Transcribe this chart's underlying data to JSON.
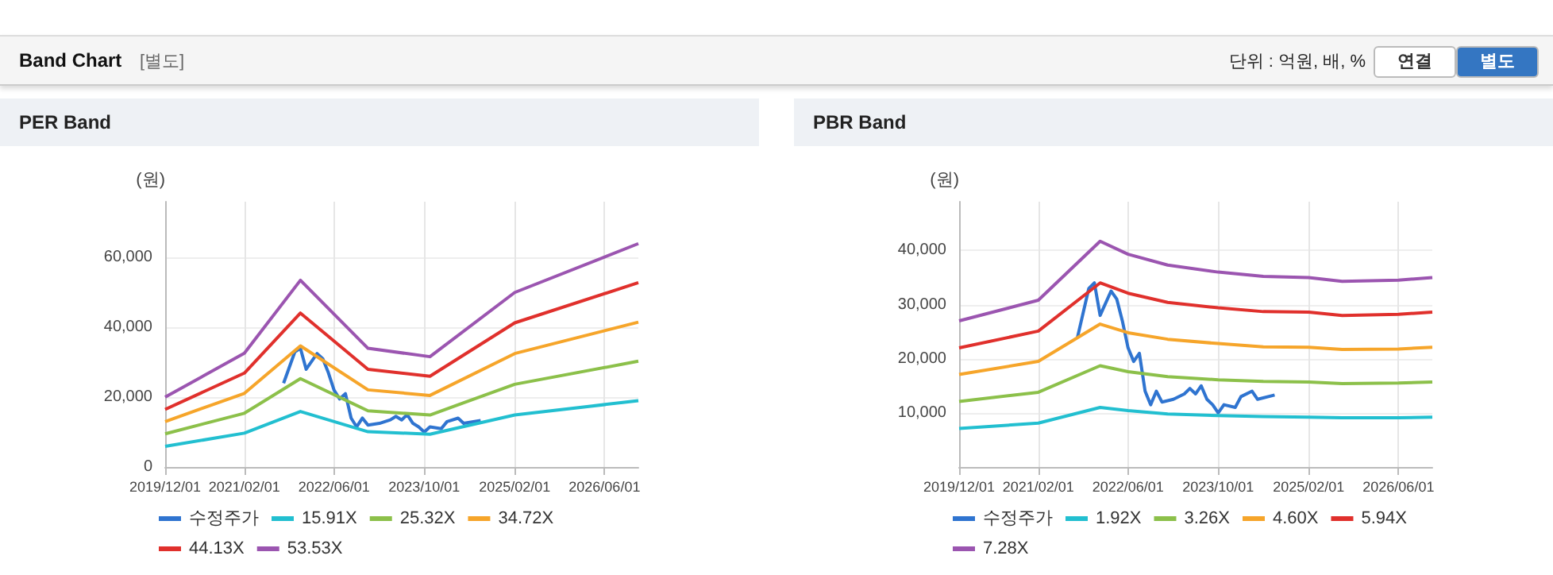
{
  "chart_data": [
    {
      "type": "line",
      "title": "PER Band",
      "ylabel": "(원)",
      "annotations": [
        "Band Chart",
        "[별도]",
        "단위 : 억원, 배, %",
        "연결",
        "별도"
      ],
      "xlim": [
        "2019-12-01",
        "2026-12-01"
      ],
      "xticks": [
        {
          "value": "2019-12-01",
          "label": "2019/12/01"
        },
        {
          "value": "2021-02-01",
          "label": "2021/02/01"
        },
        {
          "value": "2022-06-01",
          "label": "2022/06/01"
        },
        {
          "value": "2023-10-01",
          "label": "2023/10/01"
        },
        {
          "value": "2025-02-01",
          "label": "2025/02/01"
        },
        {
          "value": "2026-06-01",
          "label": "2026/06/01"
        }
      ],
      "ylim": [
        0,
        76000
      ],
      "yticks": [
        0,
        {
          "value": 20000,
          "label": "20,000"
        },
        {
          "value": 40000,
          "label": "40,000"
        },
        {
          "value": 60000,
          "label": "60,000"
        }
      ],
      "grid": true,
      "legend": "bottom",
      "marker": "none",
      "line_style": "solid",
      "series": [
        {
          "name": "수정주가",
          "color": "#2f74d0",
          "x": [
            "2021-09",
            "2021-11",
            "2021-12",
            "2022-01",
            "2022-03",
            "2022-04",
            "2022-05",
            "2022-06",
            "2022-07",
            "2022-08",
            "2022-09",
            "2022-10",
            "2022-11",
            "2022-12",
            "2023-02",
            "2023-04",
            "2023-05",
            "2023-06",
            "2023-07",
            "2023-08",
            "2023-09",
            "2023-10",
            "2023-11",
            "2024-01",
            "2024-02",
            "2024-04",
            "2024-05",
            "2024-08"
          ],
          "values": [
            24000,
            33000,
            34000,
            28000,
            32500,
            31000,
            27000,
            22000,
            19500,
            21000,
            14000,
            11500,
            14000,
            12000,
            12500,
            13500,
            14500,
            13500,
            15000,
            12500,
            11500,
            10000,
            11500,
            11000,
            13000,
            14000,
            12500,
            13300
          ]
        },
        {
          "name": "15.91X",
          "color": "#22bfd0",
          "x": [
            "2019-12",
            "2021-02",
            "2021-12",
            "2022-12",
            "2023-11",
            "2025-02",
            "2026-12"
          ],
          "values": [
            5900,
            9700,
            15900,
            10100,
            9400,
            14900,
            19000
          ]
        },
        {
          "name": "25.32X",
          "color": "#8cc04a",
          "x": [
            "2019-12",
            "2021-02",
            "2021-12",
            "2022-12",
            "2023-11",
            "2025-02",
            "2026-12"
          ],
          "values": [
            9500,
            15400,
            25300,
            16100,
            14900,
            23700,
            30300
          ]
        },
        {
          "name": "34.72X",
          "color": "#f6a52a",
          "x": [
            "2019-12",
            "2021-02",
            "2021-12",
            "2022-12",
            "2023-11",
            "2025-02",
            "2026-12"
          ],
          "values": [
            13000,
            21100,
            34700,
            22100,
            20500,
            32500,
            41500
          ]
        },
        {
          "name": "44.13X",
          "color": "#e0302c",
          "x": [
            "2019-12",
            "2021-02",
            "2021-12",
            "2022-12",
            "2023-11",
            "2025-02",
            "2026-12"
          ],
          "values": [
            16500,
            26900,
            44100,
            28000,
            26000,
            41300,
            52800
          ]
        },
        {
          "name": "53.53X",
          "color": "#9b55b0",
          "x": [
            "2019-12",
            "2021-02",
            "2021-12",
            "2022-12",
            "2023-11",
            "2025-02",
            "2026-12"
          ],
          "values": [
            20000,
            32600,
            53500,
            34000,
            31600,
            50000,
            64000
          ]
        }
      ]
    },
    {
      "type": "line",
      "title": "PBR Band",
      "ylabel": "(원)",
      "xlim": [
        "2019-12-01",
        "2026-12-01"
      ],
      "xticks": [
        {
          "value": "2019-12-01",
          "label": "2019/12/01"
        },
        {
          "value": "2021-02-01",
          "label": "2021/02/01"
        },
        {
          "value": "2022-06-01",
          "label": "2022/06/01"
        },
        {
          "value": "2023-10-01",
          "label": "2023/10/01"
        },
        {
          "value": "2025-02-01",
          "label": "2025/02/01"
        },
        {
          "value": "2026-06-01",
          "label": "2026/06/01"
        }
      ],
      "ylim": [
        0,
        49000
      ],
      "yticks": [
        {
          "value": 10000,
          "label": "10,000"
        },
        {
          "value": 20000,
          "label": "20,000"
        },
        {
          "value": 30000,
          "label": "30,000"
        },
        {
          "value": 40000,
          "label": "40,000"
        }
      ],
      "grid": true,
      "legend": "bottom",
      "marker": "none",
      "line_style": "solid",
      "series": [
        {
          "name": "수정주가",
          "color": "#2f74d0",
          "x": [
            "2021-09",
            "2021-11",
            "2021-12",
            "2022-01",
            "2022-03",
            "2022-04",
            "2022-05",
            "2022-06",
            "2022-07",
            "2022-08",
            "2022-09",
            "2022-10",
            "2022-11",
            "2022-12",
            "2023-02",
            "2023-04",
            "2023-05",
            "2023-06",
            "2023-07",
            "2023-08",
            "2023-09",
            "2023-10",
            "2023-11",
            "2024-01",
            "2024-02",
            "2024-04",
            "2024-05",
            "2024-08"
          ],
          "values": [
            24000,
            33000,
            34000,
            28000,
            32500,
            31000,
            27000,
            22000,
            19500,
            21000,
            14000,
            11500,
            14000,
            12000,
            12500,
            13500,
            14500,
            13500,
            15000,
            12500,
            11500,
            10000,
            11500,
            11000,
            13000,
            14000,
            12500,
            13300
          ]
        },
        {
          "name": "1.92X",
          "color": "#22bfd0",
          "x": [
            "2019-12",
            "2021-02",
            "2022-01",
            "2022-06",
            "2023-01",
            "2023-10",
            "2024-06",
            "2025-02",
            "2025-08",
            "2026-06",
            "2026-12"
          ],
          "values": [
            7100,
            8100,
            11000,
            10400,
            9800,
            9500,
            9300,
            9200,
            9100,
            9100,
            9200
          ]
        },
        {
          "name": "3.26X",
          "color": "#8cc04a",
          "x": [
            "2019-12",
            "2021-02",
            "2022-01",
            "2022-06",
            "2023-01",
            "2023-10",
            "2024-06",
            "2025-02",
            "2025-08",
            "2026-06",
            "2026-12"
          ],
          "values": [
            12100,
            13800,
            18700,
            17600,
            16700,
            16100,
            15800,
            15700,
            15400,
            15500,
            15700
          ]
        },
        {
          "name": "4.60X",
          "color": "#f6a52a",
          "x": [
            "2019-12",
            "2021-02",
            "2022-01",
            "2022-06",
            "2023-01",
            "2023-10",
            "2024-06",
            "2025-02",
            "2025-08",
            "2026-06",
            "2026-12"
          ],
          "values": [
            17100,
            19500,
            26400,
            24800,
            23600,
            22800,
            22200,
            22100,
            21700,
            21800,
            22100
          ]
        },
        {
          "name": "5.94X",
          "color": "#e0302c",
          "x": [
            "2019-12",
            "2021-02",
            "2022-01",
            "2022-06",
            "2023-01",
            "2023-10",
            "2024-06",
            "2025-02",
            "2025-08",
            "2026-06",
            "2026-12"
          ],
          "values": [
            22000,
            25100,
            34000,
            32100,
            30400,
            29400,
            28700,
            28600,
            28000,
            28200,
            28600
          ]
        },
        {
          "name": "7.28X",
          "color": "#9b55b0",
          "x": [
            "2019-12",
            "2021-02",
            "2022-01",
            "2022-06",
            "2023-01",
            "2023-10",
            "2024-06",
            "2025-02",
            "2025-08",
            "2026-06",
            "2026-12"
          ],
          "values": [
            27000,
            30800,
            41700,
            39300,
            37300,
            36000,
            35200,
            35000,
            34300,
            34500,
            35000
          ]
        }
      ]
    }
  ]
}
